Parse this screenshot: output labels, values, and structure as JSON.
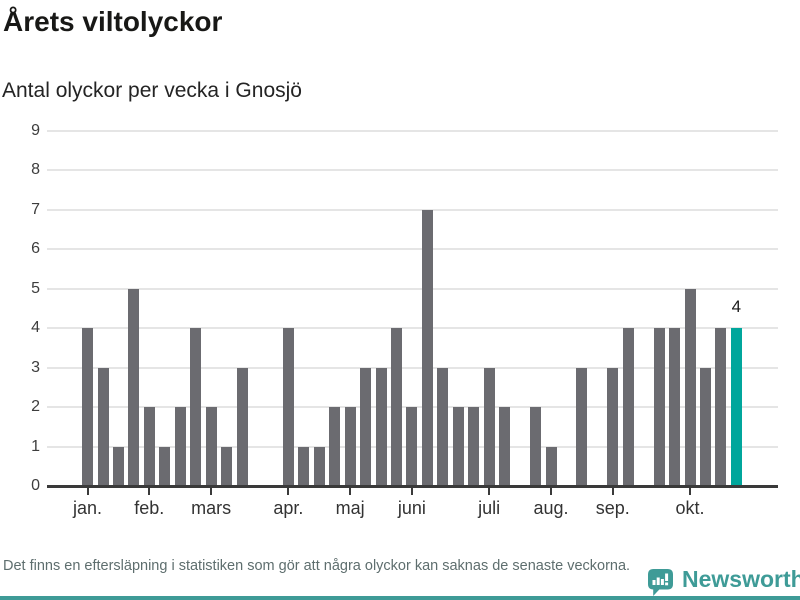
{
  "title": "Årets viltolyckor",
  "subtitle": "Antal olyckor per vecka i Gnosjö",
  "footer": {
    "note": "Det finns en eftersläpning i statistiken som gör att några olyckor kan saknas de senaste veckorna."
  },
  "brand": {
    "name": "Newsworthy",
    "color": "#3E9B97"
  },
  "chart_data": {
    "type": "bar",
    "title": "Årets viltolyckor",
    "subtitle": "Antal olyckor per vecka i Gnosjö",
    "description": "One bar per week of the year, January through late October",
    "values": [
      4,
      3,
      1,
      5,
      2,
      1,
      2,
      4,
      2,
      1,
      3,
      0,
      0,
      4,
      1,
      1,
      2,
      2,
      3,
      3,
      4,
      2,
      7,
      3,
      2,
      2,
      3,
      2,
      0,
      2,
      1,
      0,
      3,
      0,
      3,
      4,
      0,
      4,
      4,
      5,
      3,
      4,
      4
    ],
    "month_ticks": [
      {
        "label": "jan.",
        "bar_index": 0
      },
      {
        "label": "feb.",
        "bar_index": 4
      },
      {
        "label": "mars",
        "bar_index": 8
      },
      {
        "label": "apr.",
        "bar_index": 13
      },
      {
        "label": "maj",
        "bar_index": 17
      },
      {
        "label": "juni",
        "bar_index": 21
      },
      {
        "label": "juli",
        "bar_index": 26
      },
      {
        "label": "aug.",
        "bar_index": 30
      },
      {
        "label": "sep.",
        "bar_index": 34
      },
      {
        "label": "okt.",
        "bar_index": 39
      }
    ],
    "highlight": {
      "bar_index": 42,
      "label": "4",
      "value": 4
    },
    "ylim": [
      0,
      9
    ],
    "yticks": [
      0,
      1,
      2,
      3,
      4,
      5,
      6,
      7,
      8,
      9
    ],
    "grid": true,
    "legend": false,
    "colors": {
      "bar": "#6B6B70",
      "highlight_bar": "#00A69C",
      "grid": "#E5E5E5",
      "axis": "#3A3A3A"
    }
  }
}
